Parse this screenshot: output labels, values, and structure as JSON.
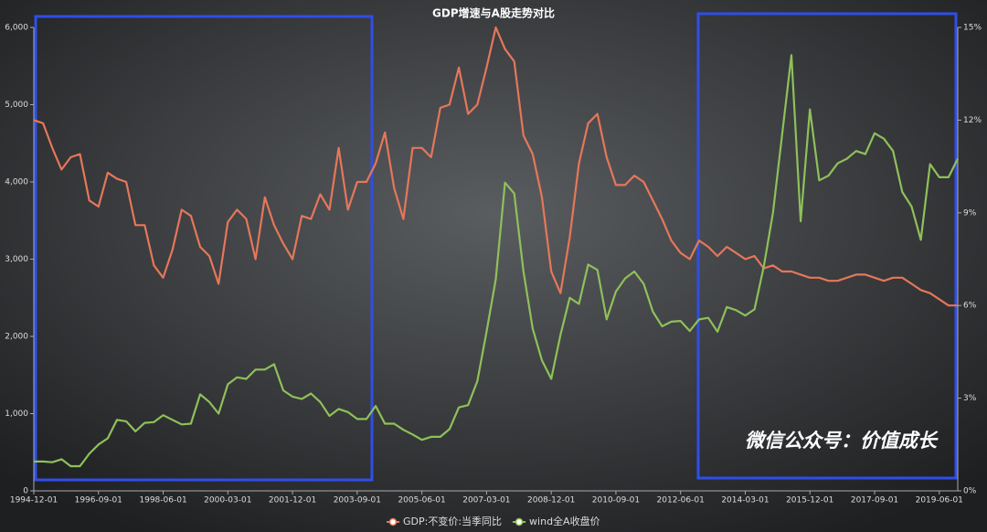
{
  "chart_data": {
    "type": "line",
    "title": "GDP增速与A股走势对比",
    "annotations": [
      "微信公众号：价值成长"
    ],
    "categories": [
      "1994-12-01",
      null,
      null,
      null,
      null,
      null,
      null,
      "1996-09-01",
      null,
      null,
      null,
      null,
      null,
      null,
      "1998-06-01",
      null,
      null,
      null,
      null,
      null,
      null,
      "2000-03-01",
      null,
      null,
      null,
      null,
      null,
      null,
      "2001-12-01",
      null,
      null,
      null,
      null,
      null,
      null,
      "2003-09-01",
      null,
      null,
      null,
      null,
      null,
      null,
      "2005-06-01",
      null,
      null,
      null,
      null,
      null,
      null,
      "2007-03-01",
      null,
      null,
      null,
      null,
      null,
      null,
      "2008-12-01",
      null,
      null,
      null,
      null,
      null,
      null,
      "2010-09-01",
      null,
      null,
      null,
      null,
      null,
      null,
      "2012-06-01",
      null,
      null,
      null,
      null,
      null,
      null,
      "2014-03-01",
      null,
      null,
      null,
      null,
      null,
      null,
      "2015-12-01",
      null,
      null,
      null,
      null,
      null,
      null,
      "2017-09-01",
      null,
      null,
      null,
      null,
      null,
      null,
      "2019-06-01",
      null,
      null
    ],
    "series": [
      {
        "name": "GDP:不变价:当季同比",
        "color": "#e5775a",
        "axis": "y2",
        "values": [
          12.0,
          11.9,
          11.1,
          10.4,
          10.8,
          10.9,
          9.4,
          9.2,
          10.3,
          10.1,
          10.0,
          8.6,
          8.6,
          7.3,
          6.9,
          7.8,
          9.1,
          8.9,
          7.9,
          7.6,
          6.7,
          8.7,
          9.1,
          8.8,
          7.5,
          9.5,
          8.6,
          8.0,
          7.5,
          8.9,
          8.8,
          9.6,
          9.1,
          11.1,
          9.1,
          10.0,
          10.0,
          10.6,
          11.6,
          9.8,
          8.8,
          11.1,
          11.1,
          10.8,
          12.4,
          12.5,
          13.7,
          12.2,
          12.5,
          13.7,
          15.0,
          14.3,
          13.9,
          11.5,
          10.9,
          9.5,
          7.1,
          6.4,
          8.2,
          10.6,
          11.9,
          12.2,
          10.8,
          9.9,
          9.9,
          10.2,
          10.0,
          9.4,
          8.8,
          8.1,
          7.7,
          7.5,
          8.1,
          7.9,
          7.6,
          7.9,
          7.7,
          7.5,
          7.6,
          7.2,
          7.3,
          7.1,
          7.1,
          7.0,
          6.9,
          6.9,
          6.8,
          6.8,
          6.9,
          7.0,
          7.0,
          6.9,
          6.8,
          6.9,
          6.9,
          6.7,
          6.5,
          6.4,
          6.2,
          6.0,
          6.0
        ]
      },
      {
        "name": "wind全A收盘价",
        "color": "#8fc05a",
        "values": [
          380,
          380,
          370,
          410,
          320,
          320,
          480,
          600,
          680,
          920,
          900,
          770,
          880,
          890,
          980,
          920,
          860,
          870,
          1250,
          1150,
          1000,
          1380,
          1470,
          1450,
          1570,
          1570,
          1640,
          1300,
          1220,
          1190,
          1260,
          1150,
          970,
          1060,
          1020,
          930,
          930,
          1100,
          870,
          870,
          790,
          730,
          660,
          700,
          700,
          800,
          1080,
          1110,
          1420,
          2060,
          2740,
          3990,
          3850,
          2840,
          2100,
          1690,
          1450,
          2020,
          2500,
          2420,
          2930,
          2860,
          2220,
          2580,
          2750,
          2840,
          2680,
          2320,
          2130,
          2190,
          2200,
          2070,
          2220,
          2240,
          2060,
          2380,
          2340,
          2270,
          2350,
          2900,
          3600,
          4620,
          5640,
          3490,
          4940,
          4020,
          4080,
          4240,
          4300,
          4400,
          4360,
          4630,
          4560,
          4400,
          3870,
          3680,
          3250,
          4230,
          4060,
          4060,
          4300
        ]
      }
    ],
    "ylim": [
      0,
      6000
    ],
    "yticks": [
      0,
      {
        "value": 1000,
        "label": "1,000"
      },
      {
        "value": 2000,
        "label": "2,000"
      },
      {
        "value": 3000,
        "label": "3,000"
      },
      {
        "value": 4000,
        "label": "4,000"
      },
      {
        "value": 5000,
        "label": "5,000"
      },
      {
        "value": 6000,
        "label": "6,000"
      }
    ],
    "y2lim": [
      0,
      15
    ],
    "y2ticks": [
      {
        "value": 0,
        "label": "0%"
      },
      {
        "value": 3,
        "label": "3%"
      },
      {
        "value": 6,
        "label": "6%"
      },
      {
        "value": 9,
        "label": "9%"
      },
      {
        "value": 12,
        "label": "12%"
      },
      {
        "value": 15,
        "label": "15%"
      }
    ],
    "grid": false,
    "legend": "bottom"
  }
}
